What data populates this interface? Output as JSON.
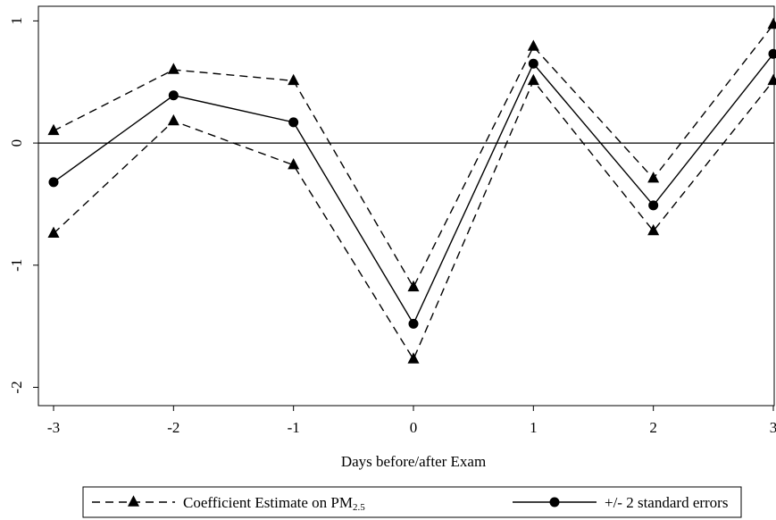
{
  "chart_data": {
    "type": "line",
    "xlabel": "Days before/after Exam",
    "ylabel": "",
    "x": [
      -3,
      -2,
      -1,
      0,
      1,
      2,
      3
    ],
    "xlim": [
      -3,
      3
    ],
    "ylim": [
      -2.15,
      1.12
    ],
    "x_ticks": [
      "-3",
      "-2",
      "-1",
      "0",
      "1",
      "2",
      "3"
    ],
    "y_ticks": [
      {
        "value": 1,
        "label": "1"
      },
      {
        "value": 0,
        "label": "0"
      },
      {
        "value": -1,
        "label": "-1"
      },
      {
        "value": -2,
        "label": "-2"
      }
    ],
    "reference_line": 0,
    "series": [
      {
        "role": "upper",
        "style": "dashed",
        "marker": "triangle",
        "values": [
          0.1,
          0.6,
          0.51,
          -1.18,
          0.79,
          -0.29,
          0.97
        ]
      },
      {
        "role": "estimate",
        "style": "solid",
        "marker": "circle",
        "values": [
          -0.32,
          0.39,
          0.17,
          -1.48,
          0.65,
          -0.51,
          0.73
        ]
      },
      {
        "role": "lower",
        "style": "dashed",
        "marker": "triangle",
        "values": [
          -0.74,
          0.18,
          -0.18,
          -1.77,
          0.51,
          -0.72,
          0.51
        ]
      }
    ],
    "legend": {
      "position": "bottom",
      "entries": [
        {
          "style": "dashed",
          "marker": "triangle",
          "text": "Coefficient Estimate on PM",
          "subscript": "2.5"
        },
        {
          "style": "solid",
          "marker": "circle",
          "text": "+/- 2 standard errors"
        }
      ]
    },
    "grid": false,
    "colors": {
      "line": "#000000",
      "background": "#ffffff"
    }
  }
}
